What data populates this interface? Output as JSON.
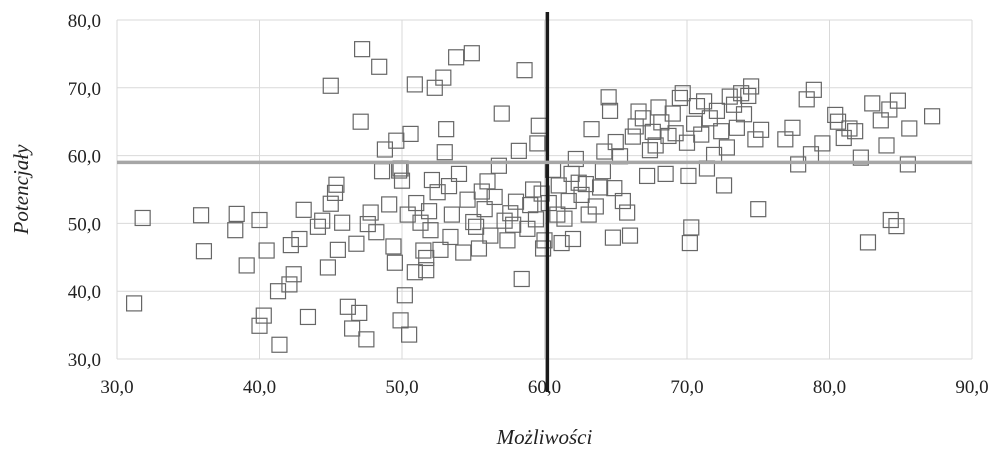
{
  "chart_data": {
    "type": "scatter",
    "title": "",
    "xlabel": "Możliwości",
    "ylabel": "Potencjały",
    "xlim": [
      30,
      90
    ],
    "ylim": [
      30,
      80
    ],
    "x_ticks": [
      "30,0",
      "40,0",
      "50,0",
      "60,0",
      "70,0",
      "80,0",
      "90,0"
    ],
    "y_ticks": [
      "30,0",
      "40,0",
      "50,0",
      "60,0",
      "70,0",
      "80,0"
    ],
    "grid": true,
    "marker": "open-square",
    "reference_lines": {
      "vertical_x": 60.2,
      "horizontal_y": 59.0
    },
    "colors": {
      "marker": "#666666",
      "grid": "#d9d9d9",
      "vertical_line": "#1a1a1a",
      "horizontal_line": "#a6a6a6"
    },
    "points": [
      [
        31.2,
        38.2
      ],
      [
        31.8,
        50.8
      ],
      [
        35.9,
        51.2
      ],
      [
        36.1,
        45.9
      ],
      [
        38.4,
        51.4
      ],
      [
        38.3,
        49.0
      ],
      [
        39.1,
        43.8
      ],
      [
        40.0,
        50.5
      ],
      [
        40.0,
        34.9
      ],
      [
        40.3,
        36.4
      ],
      [
        40.5,
        46.0
      ],
      [
        41.3,
        40.0
      ],
      [
        41.4,
        32.1
      ],
      [
        42.1,
        41.0
      ],
      [
        42.4,
        42.5
      ],
      [
        42.2,
        46.8
      ],
      [
        42.8,
        47.7
      ],
      [
        43.1,
        52.0
      ],
      [
        43.4,
        36.2
      ],
      [
        44.1,
        49.5
      ],
      [
        44.4,
        50.4
      ],
      [
        44.8,
        43.5
      ],
      [
        45.0,
        70.3
      ],
      [
        45.0,
        52.9
      ],
      [
        45.3,
        54.5
      ],
      [
        45.4,
        55.7
      ],
      [
        45.5,
        46.1
      ],
      [
        45.8,
        50.1
      ],
      [
        46.2,
        37.7
      ],
      [
        46.5,
        34.5
      ],
      [
        46.8,
        47.0
      ],
      [
        47.0,
        36.8
      ],
      [
        47.1,
        65.0
      ],
      [
        47.2,
        75.7
      ],
      [
        47.5,
        32.9
      ],
      [
        47.6,
        49.9
      ],
      [
        47.8,
        51.6
      ],
      [
        48.2,
        48.7
      ],
      [
        48.4,
        73.1
      ],
      [
        48.6,
        57.7
      ],
      [
        48.8,
        60.9
      ],
      [
        49.1,
        52.8
      ],
      [
        49.4,
        46.6
      ],
      [
        49.5,
        44.2
      ],
      [
        49.6,
        62.2
      ],
      [
        49.8,
        57.8
      ],
      [
        49.9,
        58.1
      ],
      [
        49.9,
        35.7
      ],
      [
        50.0,
        56.3
      ],
      [
        50.2,
        39.4
      ],
      [
        50.4,
        51.3
      ],
      [
        50.5,
        33.6
      ],
      [
        50.6,
        63.2
      ],
      [
        50.9,
        70.5
      ],
      [
        50.9,
        42.8
      ],
      [
        51.0,
        53.0
      ],
      [
        51.3,
        50.1
      ],
      [
        51.5,
        46.0
      ],
      [
        51.7,
        44.9
      ],
      [
        51.7,
        43.1
      ],
      [
        51.9,
        51.8
      ],
      [
        52.0,
        49.0
      ],
      [
        52.1,
        56.4
      ],
      [
        52.3,
        70.0
      ],
      [
        52.5,
        54.6
      ],
      [
        52.7,
        46.1
      ],
      [
        52.9,
        71.5
      ],
      [
        53.0,
        60.5
      ],
      [
        53.1,
        63.9
      ],
      [
        53.3,
        55.5
      ],
      [
        53.4,
        48.0
      ],
      [
        53.5,
        51.3
      ],
      [
        53.8,
        74.5
      ],
      [
        54.0,
        57.3
      ],
      [
        54.3,
        45.7
      ],
      [
        54.6,
        53.5
      ],
      [
        54.9,
        75.1
      ],
      [
        55.0,
        50.2
      ],
      [
        55.2,
        49.5
      ],
      [
        55.4,
        46.3
      ],
      [
        55.6,
        54.7
      ],
      [
        55.8,
        52.1
      ],
      [
        56.0,
        56.2
      ],
      [
        56.2,
        48.2
      ],
      [
        56.5,
        53.9
      ],
      [
        56.8,
        58.5
      ],
      [
        57.0,
        66.2
      ],
      [
        57.2,
        50.4
      ],
      [
        57.4,
        47.5
      ],
      [
        57.6,
        51.5
      ],
      [
        57.8,
        49.8
      ],
      [
        58.0,
        53.2
      ],
      [
        58.2,
        60.7
      ],
      [
        58.4,
        41.8
      ],
      [
        58.6,
        72.6
      ],
      [
        58.8,
        49.2
      ],
      [
        59.0,
        52.7
      ],
      [
        59.2,
        55.0
      ],
      [
        59.4,
        50.6
      ],
      [
        59.5,
        61.8
      ],
      [
        59.6,
        64.4
      ],
      [
        59.8,
        54.4
      ],
      [
        59.9,
        46.3
      ],
      [
        60.0,
        47.5
      ],
      [
        60.3,
        53.0
      ],
      [
        60.6,
        57.9
      ],
      [
        60.9,
        51.3
      ],
      [
        61.0,
        55.6
      ],
      [
        61.2,
        47.1
      ],
      [
        61.4,
        50.7
      ],
      [
        61.7,
        53.3
      ],
      [
        61.9,
        57.3
      ],
      [
        62.0,
        47.7
      ],
      [
        62.2,
        59.5
      ],
      [
        62.4,
        56.0
      ],
      [
        62.6,
        54.2
      ],
      [
        62.9,
        55.8
      ],
      [
        63.1,
        51.3
      ],
      [
        63.3,
        63.9
      ],
      [
        63.6,
        52.5
      ],
      [
        63.9,
        55.3
      ],
      [
        64.1,
        57.7
      ],
      [
        64.2,
        60.6
      ],
      [
        64.5,
        68.6
      ],
      [
        64.6,
        66.6
      ],
      [
        64.8,
        47.9
      ],
      [
        64.9,
        55.2
      ],
      [
        65.0,
        62.0
      ],
      [
        65.3,
        59.9
      ],
      [
        65.5,
        53.3
      ],
      [
        65.8,
        51.6
      ],
      [
        66.0,
        48.2
      ],
      [
        66.2,
        62.8
      ],
      [
        66.4,
        64.3
      ],
      [
        66.6,
        66.5
      ],
      [
        66.9,
        65.5
      ],
      [
        67.2,
        57.0
      ],
      [
        67.4,
        60.8
      ],
      [
        67.6,
        63.5
      ],
      [
        67.8,
        61.5
      ],
      [
        68.0,
        67.1
      ],
      [
        68.2,
        64.9
      ],
      [
        68.5,
        57.3
      ],
      [
        68.7,
        62.9
      ],
      [
        69.0,
        66.2
      ],
      [
        69.2,
        63.3
      ],
      [
        69.5,
        68.5
      ],
      [
        69.7,
        69.2
      ],
      [
        70.0,
        61.9
      ],
      [
        70.1,
        57.0
      ],
      [
        70.2,
        47.1
      ],
      [
        70.3,
        49.4
      ],
      [
        70.5,
        64.7
      ],
      [
        70.7,
        67.3
      ],
      [
        71.0,
        63.1
      ],
      [
        71.2,
        68.0
      ],
      [
        71.4,
        58.1
      ],
      [
        71.6,
        65.5
      ],
      [
        71.9,
        60.1
      ],
      [
        72.1,
        66.6
      ],
      [
        72.4,
        63.6
      ],
      [
        72.6,
        55.6
      ],
      [
        72.8,
        61.2
      ],
      [
        73.0,
        68.7
      ],
      [
        73.3,
        67.5
      ],
      [
        73.5,
        64.1
      ],
      [
        73.8,
        69.2
      ],
      [
        74.0,
        66.1
      ],
      [
        74.3,
        68.8
      ],
      [
        74.5,
        70.2
      ],
      [
        74.8,
        62.4
      ],
      [
        75.0,
        52.1
      ],
      [
        75.2,
        63.8
      ],
      [
        76.9,
        62.4
      ],
      [
        77.4,
        64.1
      ],
      [
        77.8,
        58.7
      ],
      [
        78.4,
        68.3
      ],
      [
        78.7,
        60.2
      ],
      [
        78.9,
        69.7
      ],
      [
        79.5,
        61.8
      ],
      [
        80.4,
        66.0
      ],
      [
        80.6,
        65.0
      ],
      [
        81.0,
        62.6
      ],
      [
        81.4,
        64.0
      ],
      [
        81.8,
        63.6
      ],
      [
        82.2,
        59.7
      ],
      [
        82.7,
        47.2
      ],
      [
        83.0,
        67.7
      ],
      [
        83.6,
        65.2
      ],
      [
        84.0,
        61.5
      ],
      [
        84.2,
        66.8
      ],
      [
        84.3,
        50.5
      ],
      [
        84.7,
        49.6
      ],
      [
        84.8,
        68.1
      ],
      [
        85.5,
        58.7
      ],
      [
        85.6,
        64.0
      ],
      [
        87.2,
        65.8
      ]
    ]
  }
}
